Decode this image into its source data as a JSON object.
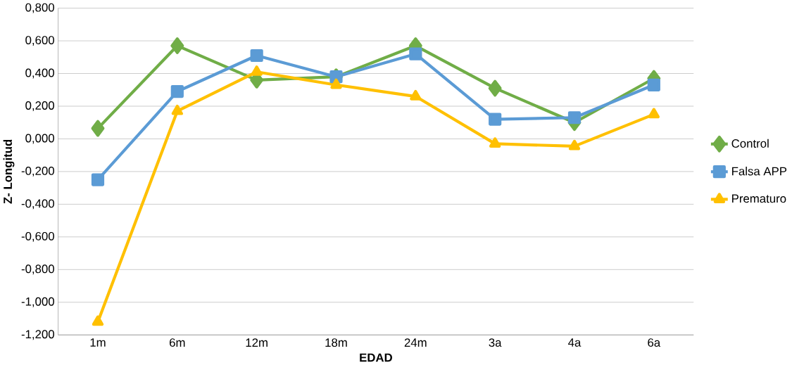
{
  "chart_data": {
    "type": "line",
    "xlabel": "EDAD",
    "ylabel": "Z- Longitud",
    "categories": [
      "1m",
      "6m",
      "12m",
      "18m",
      "24m",
      "3a",
      "4a",
      "6a"
    ],
    "series": [
      {
        "name": "Control",
        "color": "#70ad47",
        "marker": "diamond",
        "values": [
          0.064,
          0.57,
          0.36,
          0.38,
          0.57,
          0.31,
          0.1,
          0.37
        ]
      },
      {
        "name": "Falsa APP",
        "color": "#5b9bd5",
        "marker": "square",
        "values": [
          -0.25,
          0.29,
          0.51,
          0.38,
          0.52,
          0.12,
          0.13,
          0.33
        ]
      },
      {
        "name": "Prematuro",
        "color": "#ffc000",
        "marker": "triangle",
        "values": [
          -1.12,
          0.17,
          0.41,
          0.33,
          0.26,
          -0.03,
          -0.045,
          0.15
        ]
      }
    ],
    "ylim": [
      -1.2,
      0.8
    ],
    "yticks": [
      {
        "value": -1.2,
        "label": "-1,200"
      },
      {
        "value": -1.0,
        "label": "-1,000"
      },
      {
        "value": -0.8,
        "label": "-0,800"
      },
      {
        "value": -0.6,
        "label": "-0,600"
      },
      {
        "value": -0.4,
        "label": "-0,400"
      },
      {
        "value": -0.2,
        "label": "-0,200"
      },
      {
        "value": 0,
        "label": "0,000"
      },
      {
        "value": 0.2,
        "label": "0,200"
      },
      {
        "value": 0.4,
        "label": "0,400"
      },
      {
        "value": 0.6,
        "label": "0,600"
      },
      {
        "value": 0.8,
        "label": "0,800"
      }
    ],
    "grid": "y",
    "legend": "right",
    "line_style": "solid"
  }
}
